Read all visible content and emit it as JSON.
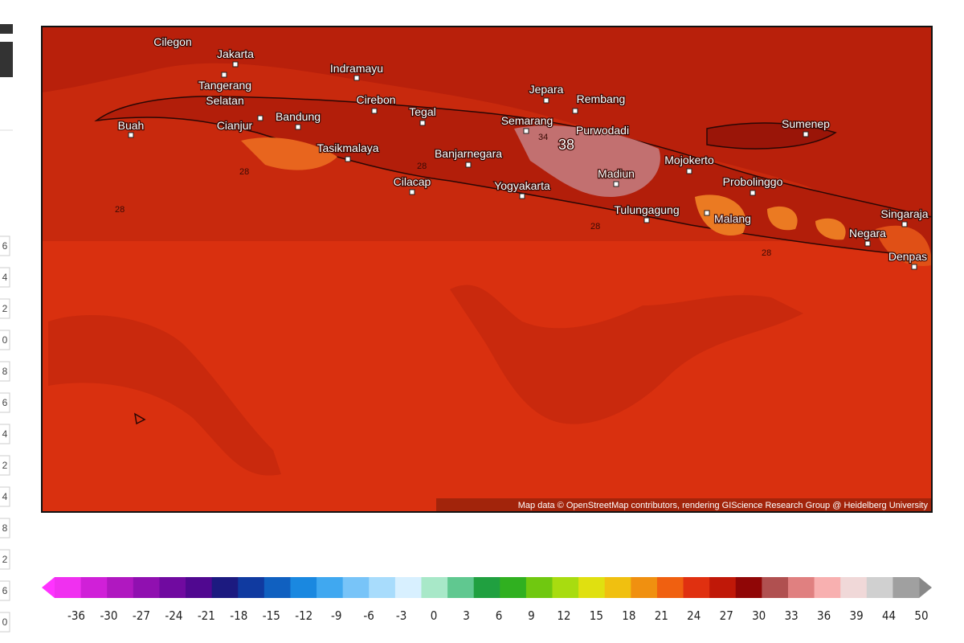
{
  "left_strip": {
    "labels": [
      "6",
      "4",
      "2",
      "0",
      "8",
      "6",
      "4",
      "2",
      "4",
      "8",
      "2",
      "6",
      "0"
    ]
  },
  "map": {
    "cities": [
      "Cilegon",
      "Jakarta",
      "Indramayu",
      "Tangerang",
      "Selatan",
      "Cirebon",
      "Tegal",
      "Jepara",
      "Rembang",
      "Semarang",
      "Purwodadi",
      "Sumenep",
      "Buah",
      "Cianjur",
      "Bandung",
      "Tasikmalaya",
      "Banjarnegara",
      "Mojokerto",
      "Madiun",
      "Probolinggo",
      "Cilacap",
      "Yogyakarta",
      "Tulungagung",
      "Malang",
      "Singaraja",
      "Negara",
      "Denpas"
    ],
    "contour_labels": [
      "28",
      "28",
      "34",
      "38",
      "28",
      "28",
      "28"
    ],
    "attribution": "Map data © OpenStreetMap contributors, rendering GIScience Research Group @ Heidelberg University"
  },
  "colorbar": {
    "ticks": [
      "-36",
      "-30",
      "-27",
      "-24",
      "-21",
      "-18",
      "-15",
      "-12",
      "-9",
      "-6",
      "-3",
      "0",
      "3",
      "6",
      "9",
      "12",
      "15",
      "18",
      "21",
      "24",
      "27",
      "30",
      "33",
      "36",
      "39",
      "44",
      "50"
    ]
  }
}
